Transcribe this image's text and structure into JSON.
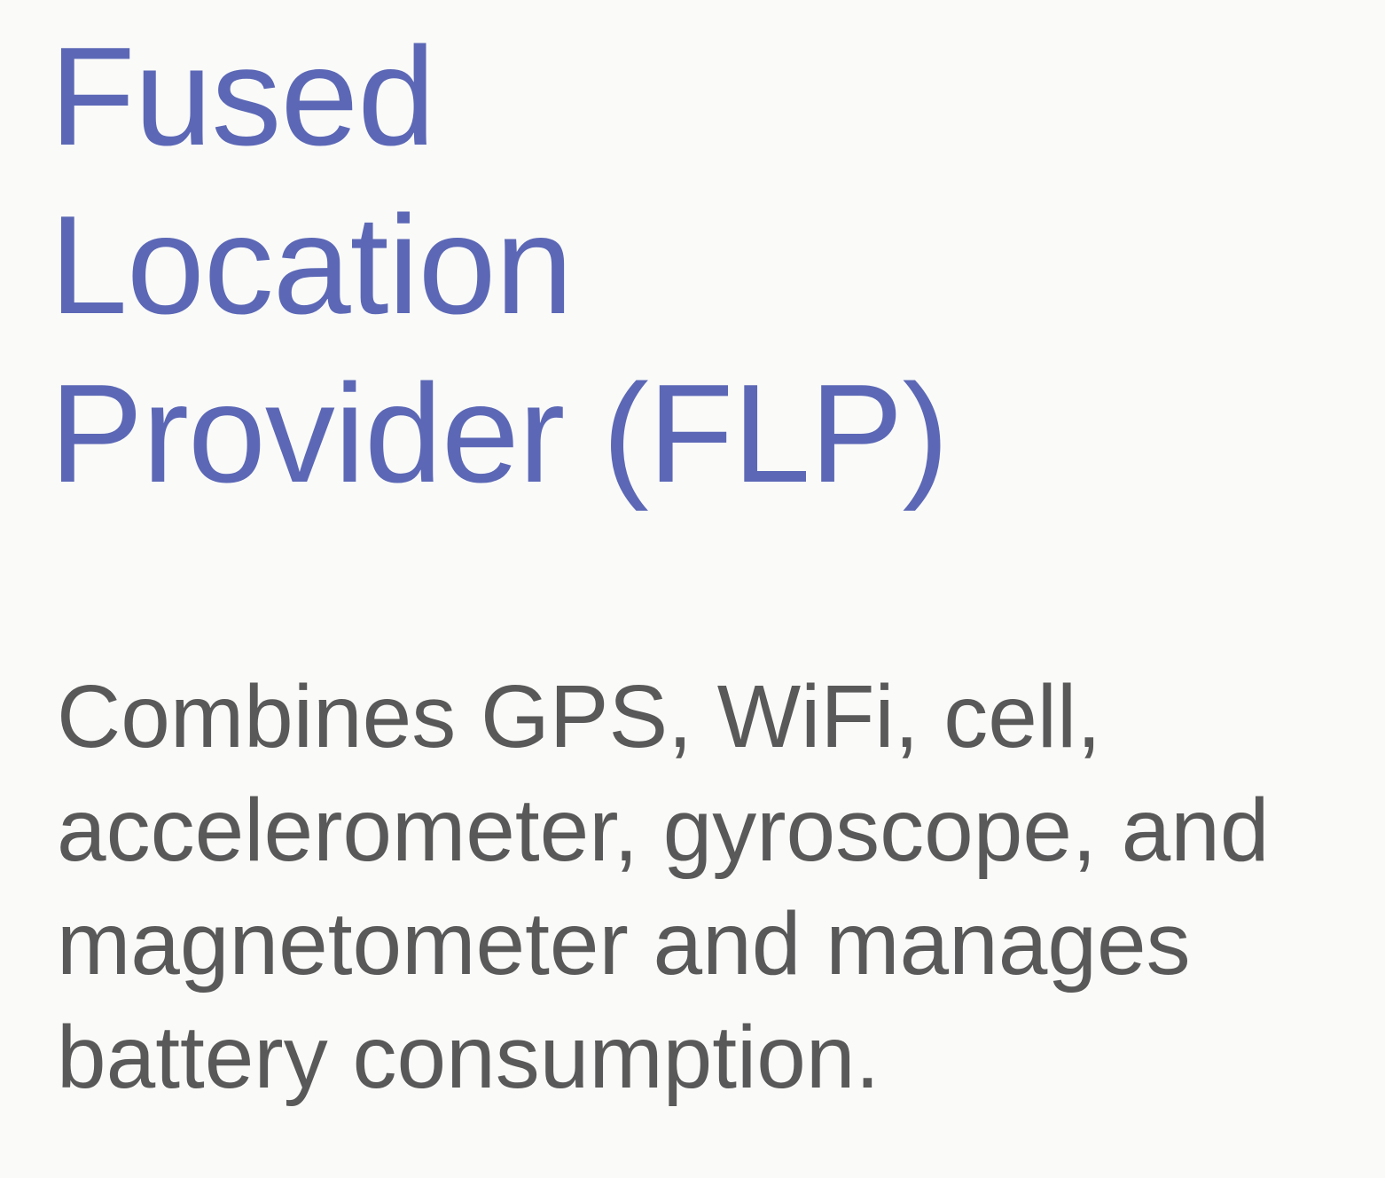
{
  "slide": {
    "title_lines": [
      "Fused",
      "Location",
      "Provider (FLP)"
    ],
    "body_lines": [
      "Combines GPS, WiFi, cell,",
      "accelerometer, gyroscope, and",
      "magnetometer and manages",
      "battery consumption."
    ]
  },
  "colors": {
    "background": "#fafaf8",
    "title": "#5c68b6",
    "body": "#595959"
  }
}
